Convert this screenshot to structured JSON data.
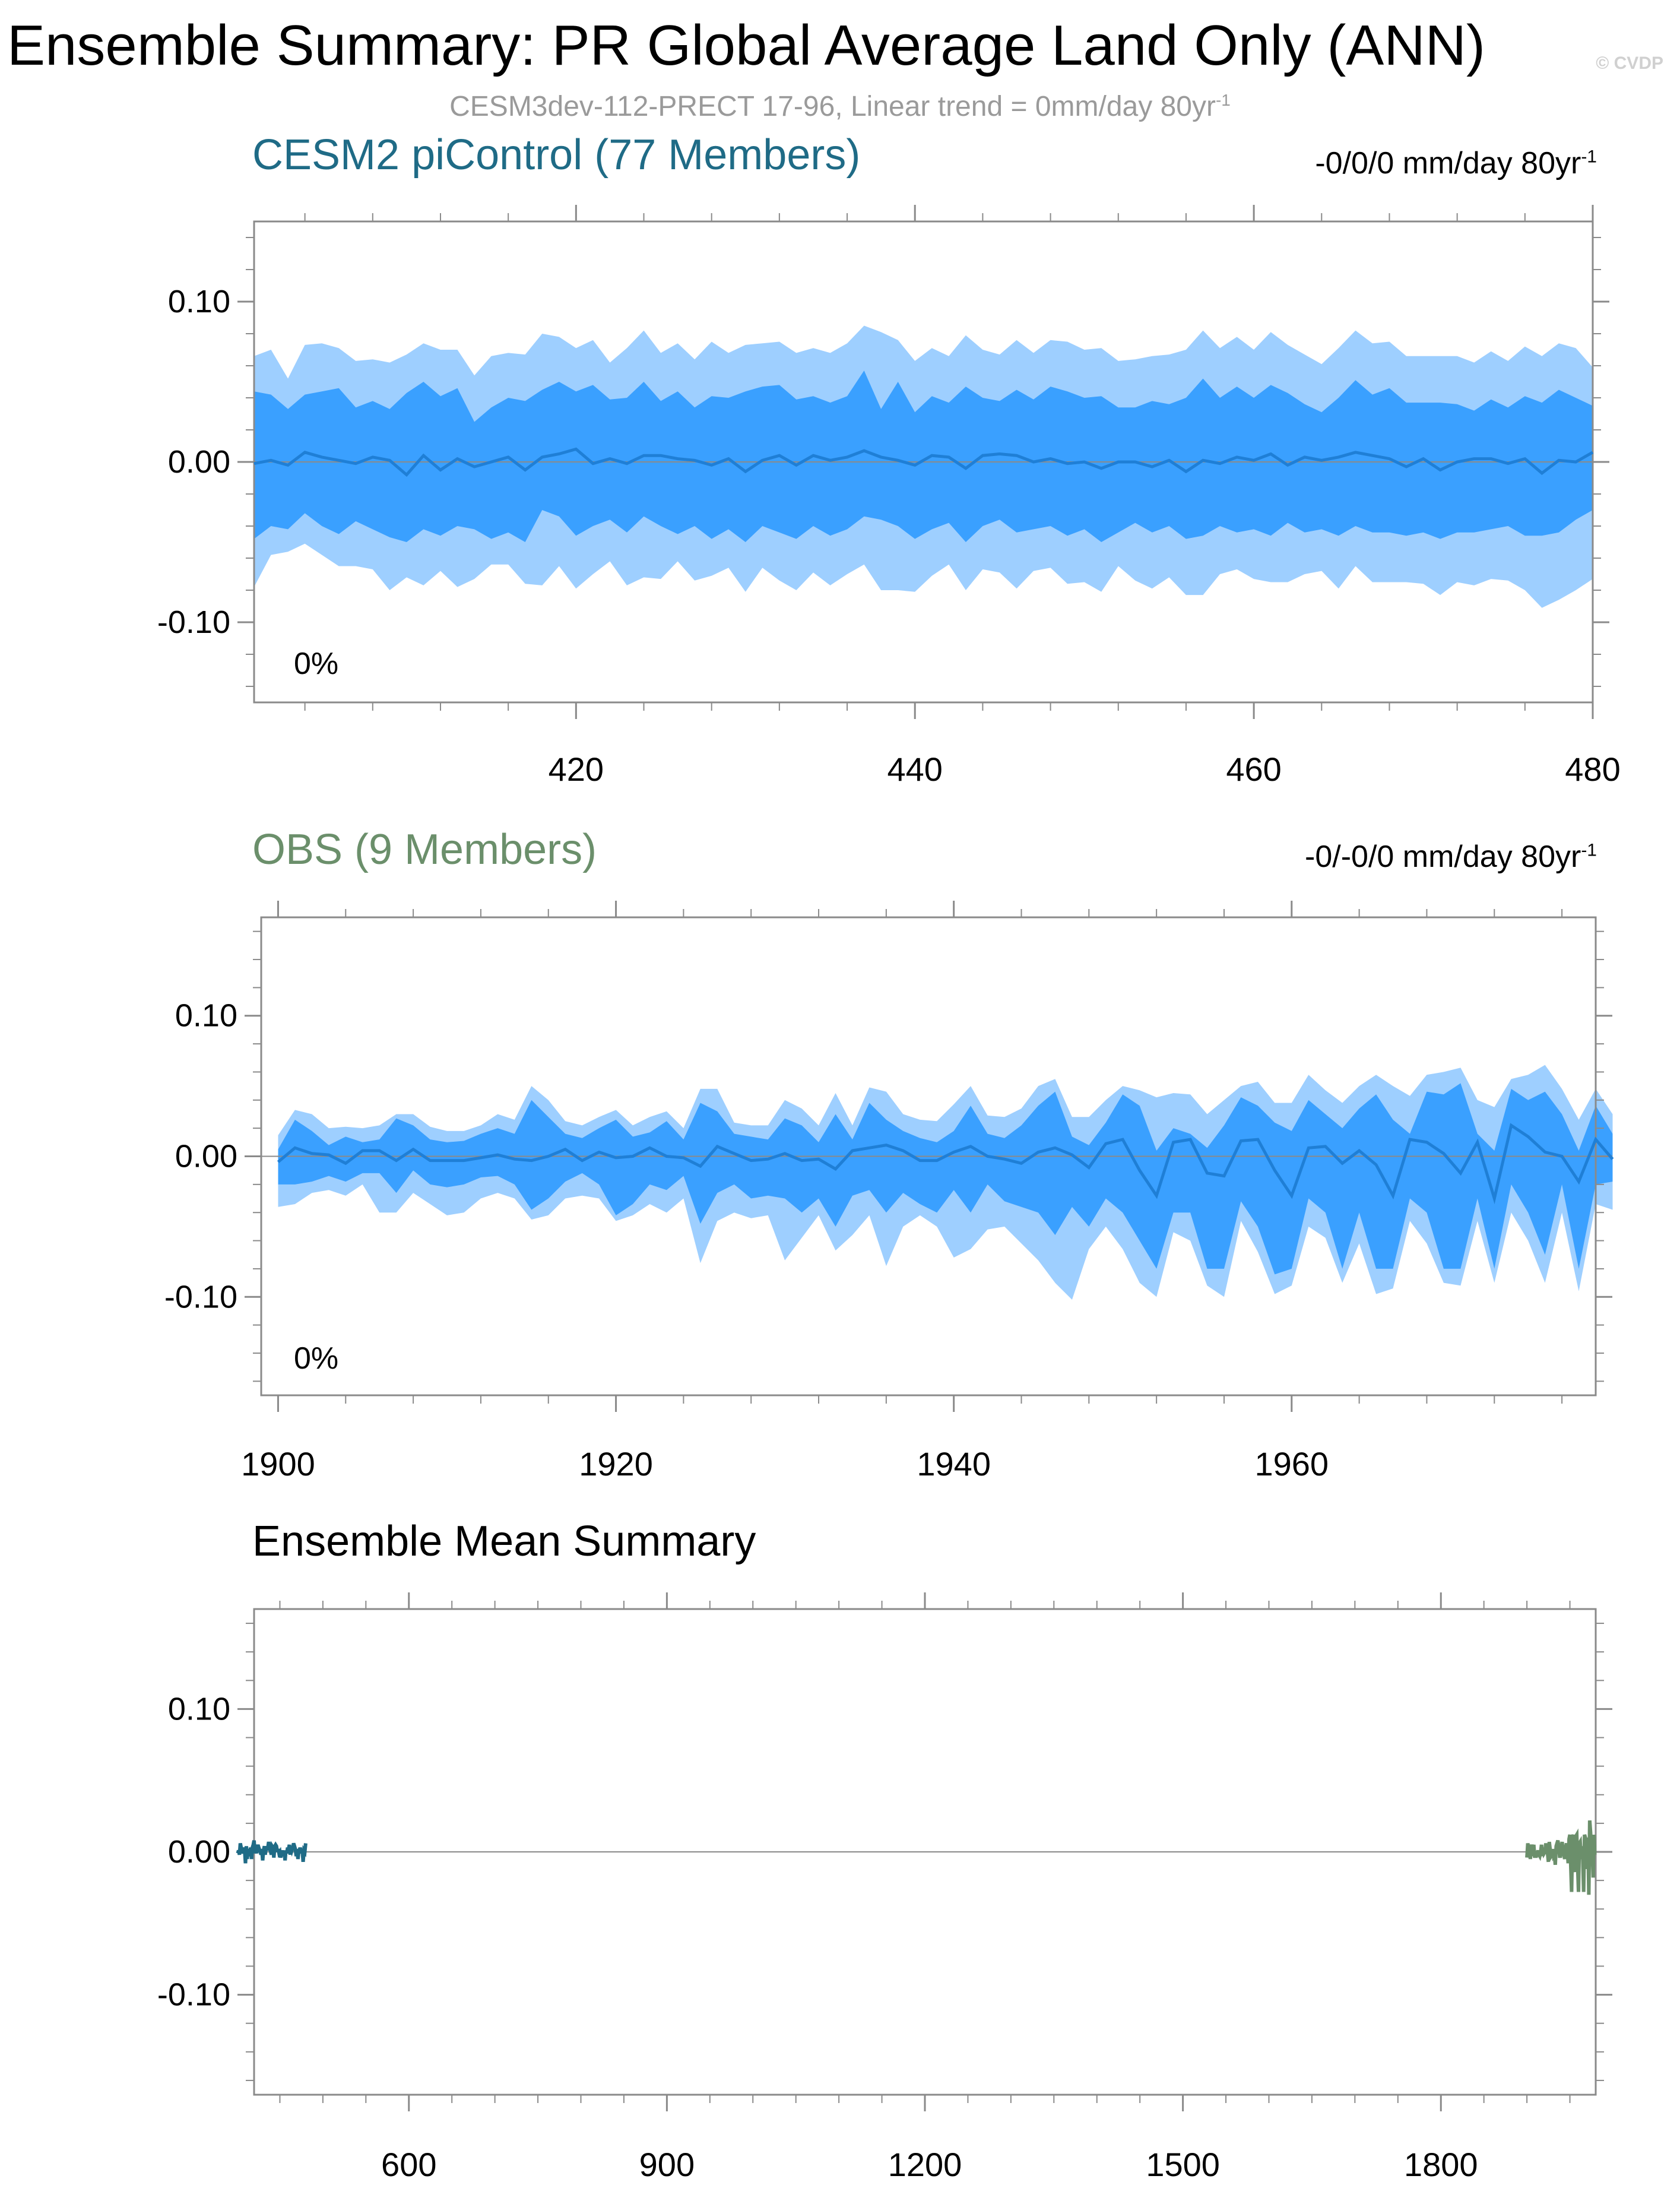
{
  "header": {
    "title": "Ensemble Summary: PR Global Average Land Only (ANN)",
    "watermark": "© CVDP",
    "subtitle": "CESM3dev-112-PRECT 17-96, Linear trend = 0mm/day 80yr",
    "subtitle_sup": "-1"
  },
  "colors": {
    "band_outer": "#9ecfff",
    "band_inner": "#3aa0ff",
    "mean_line": "#1f7fd6",
    "cesm_title": "#1f6b86",
    "obs_title": "#6b8f6b",
    "cesm_line": "#1f6b86",
    "obs_line": "#6b8f6b",
    "axis": "#8a8a8a"
  },
  "chart_data": [
    {
      "type": "area",
      "title": "CESM2 piControl (77 Members)",
      "trend": "-0/0/0 mm/day 80yr",
      "trend_sup": "-1",
      "percent_label": "0%",
      "xlim": [
        401,
        480
      ],
      "ylim": [
        -0.15,
        0.15
      ],
      "xticks": [
        420,
        440,
        460,
        480
      ],
      "yticks": [
        0.1,
        0.0,
        -0.1
      ],
      "ytick_labels": [
        "0.10",
        "0.00",
        "-0.10"
      ],
      "x_start": 401,
      "outer_upper": [
        0.066,
        0.07,
        0.052,
        0.073,
        0.074,
        0.071,
        0.063,
        0.064,
        0.062,
        0.067,
        0.074,
        0.07,
        0.07,
        0.054,
        0.066,
        0.068,
        0.067,
        0.08,
        0.078,
        0.071,
        0.076,
        0.062,
        0.071,
        0.082,
        0.068,
        0.074,
        0.064,
        0.075,
        0.068,
        0.073,
        0.074,
        0.075,
        0.068,
        0.071,
        0.068,
        0.074,
        0.085,
        0.081,
        0.076,
        0.063,
        0.071,
        0.066,
        0.079,
        0.07,
        0.067,
        0.076,
        0.068,
        0.076,
        0.075,
        0.07,
        0.071,
        0.063,
        0.064,
        0.066,
        0.067,
        0.07,
        0.082,
        0.071,
        0.078,
        0.07,
        0.081,
        0.073,
        0.067,
        0.061,
        0.071,
        0.082,
        0.074,
        0.075,
        0.066,
        0.066,
        0.066,
        0.066,
        0.062,
        0.069,
        0.063,
        0.072,
        0.066,
        0.074,
        0.071,
        0.059
      ],
      "inner_upper": [
        0.044,
        0.042,
        0.033,
        0.042,
        0.044,
        0.046,
        0.034,
        0.038,
        0.033,
        0.043,
        0.05,
        0.041,
        0.046,
        0.025,
        0.034,
        0.04,
        0.038,
        0.045,
        0.05,
        0.044,
        0.048,
        0.039,
        0.04,
        0.05,
        0.038,
        0.044,
        0.034,
        0.041,
        0.04,
        0.044,
        0.047,
        0.048,
        0.039,
        0.041,
        0.037,
        0.041,
        0.057,
        0.033,
        0.05,
        0.031,
        0.041,
        0.037,
        0.047,
        0.04,
        0.038,
        0.045,
        0.039,
        0.047,
        0.044,
        0.04,
        0.041,
        0.034,
        0.034,
        0.038,
        0.036,
        0.04,
        0.052,
        0.04,
        0.047,
        0.04,
        0.048,
        0.043,
        0.036,
        0.031,
        0.04,
        0.051,
        0.042,
        0.046,
        0.037,
        0.037,
        0.037,
        0.036,
        0.032,
        0.039,
        0.034,
        0.041,
        0.037,
        0.045,
        0.04,
        0.035
      ],
      "mean": [
        -0.001,
        0.001,
        -0.002,
        0.006,
        0.003,
        0.001,
        -0.001,
        0.003,
        0.001,
        -0.008,
        0.004,
        -0.005,
        0.002,
        -0.003,
        0.0,
        0.003,
        -0.005,
        0.003,
        0.005,
        0.008,
        -0.001,
        0.002,
        -0.001,
        0.004,
        0.004,
        0.002,
        0.001,
        -0.002,
        0.002,
        -0.006,
        0.001,
        0.004,
        -0.002,
        0.004,
        0.001,
        0.003,
        0.007,
        0.003,
        0.001,
        -0.002,
        0.004,
        0.003,
        -0.004,
        0.004,
        0.005,
        0.004,
        0.0,
        0.002,
        -0.001,
        0.0,
        -0.004,
        0.0,
        0.0,
        -0.003,
        0.001,
        -0.006,
        0.001,
        -0.001,
        0.003,
        0.001,
        0.005,
        -0.002,
        0.003,
        0.001,
        0.003,
        0.006,
        0.004,
        0.002,
        -0.003,
        0.002,
        -0.005,
        0.0,
        0.002,
        0.002,
        -0.001,
        0.002,
        -0.007,
        0.001,
        0.0,
        0.006
      ],
      "inner_lower": [
        -0.048,
        -0.04,
        -0.042,
        -0.032,
        -0.04,
        -0.045,
        -0.037,
        -0.042,
        -0.047,
        -0.05,
        -0.042,
        -0.046,
        -0.04,
        -0.042,
        -0.048,
        -0.044,
        -0.05,
        -0.03,
        -0.034,
        -0.046,
        -0.04,
        -0.036,
        -0.044,
        -0.034,
        -0.04,
        -0.045,
        -0.04,
        -0.048,
        -0.042,
        -0.05,
        -0.04,
        -0.044,
        -0.048,
        -0.04,
        -0.046,
        -0.042,
        -0.034,
        -0.036,
        -0.04,
        -0.048,
        -0.042,
        -0.038,
        -0.05,
        -0.04,
        -0.036,
        -0.044,
        -0.042,
        -0.04,
        -0.046,
        -0.042,
        -0.05,
        -0.044,
        -0.038,
        -0.044,
        -0.04,
        -0.048,
        -0.046,
        -0.04,
        -0.044,
        -0.042,
        -0.046,
        -0.038,
        -0.044,
        -0.042,
        -0.046,
        -0.04,
        -0.044,
        -0.044,
        -0.046,
        -0.044,
        -0.048,
        -0.044,
        -0.044,
        -0.042,
        -0.04,
        -0.046,
        -0.046,
        -0.044,
        -0.036,
        -0.03
      ],
      "outer_lower": [
        -0.078,
        -0.058,
        -0.056,
        -0.051,
        -0.058,
        -0.065,
        -0.065,
        -0.067,
        -0.08,
        -0.072,
        -0.077,
        -0.068,
        -0.078,
        -0.073,
        -0.064,
        -0.064,
        -0.076,
        -0.077,
        -0.065,
        -0.079,
        -0.07,
        -0.062,
        -0.077,
        -0.072,
        -0.073,
        -0.062,
        -0.074,
        -0.071,
        -0.066,
        -0.081,
        -0.066,
        -0.074,
        -0.08,
        -0.069,
        -0.077,
        -0.07,
        -0.064,
        -0.08,
        -0.08,
        -0.081,
        -0.071,
        -0.064,
        -0.08,
        -0.067,
        -0.069,
        -0.079,
        -0.068,
        -0.066,
        -0.076,
        -0.075,
        -0.081,
        -0.065,
        -0.074,
        -0.079,
        -0.072,
        -0.083,
        -0.083,
        -0.07,
        -0.067,
        -0.073,
        -0.075,
        -0.075,
        -0.07,
        -0.068,
        -0.079,
        -0.065,
        -0.075,
        -0.075,
        -0.075,
        -0.076,
        -0.083,
        -0.075,
        -0.077,
        -0.073,
        -0.074,
        -0.08,
        -0.091,
        -0.086,
        -0.08,
        -0.073
      ]
    },
    {
      "type": "area",
      "title": "OBS (9 Members)",
      "trend": "-0/-0/0 mm/day 80yr",
      "trend_sup": "-1",
      "percent_label": "0%",
      "xlim": [
        1899,
        1978
      ],
      "ylim": [
        -0.17,
        0.17
      ],
      "xticks": [
        1900,
        1920,
        1940,
        1960
      ],
      "yticks": [
        0.1,
        0.0,
        -0.1
      ],
      "ytick_labels": [
        "0.10",
        "0.00",
        "-0.10"
      ],
      "x_start": 1900,
      "outer_upper": [
        0.015,
        0.033,
        0.03,
        0.02,
        0.021,
        0.02,
        0.022,
        0.03,
        0.03,
        0.021,
        0.018,
        0.018,
        0.022,
        0.03,
        0.026,
        0.05,
        0.04,
        0.025,
        0.022,
        0.028,
        0.033,
        0.022,
        0.028,
        0.032,
        0.02,
        0.048,
        0.048,
        0.024,
        0.022,
        0.022,
        0.04,
        0.034,
        0.022,
        0.045,
        0.022,
        0.049,
        0.046,
        0.03,
        0.026,
        0.025,
        0.037,
        0.05,
        0.029,
        0.028,
        0.034,
        0.05,
        0.055,
        0.028,
        0.028,
        0.04,
        0.05,
        0.047,
        0.042,
        0.045,
        0.044,
        0.03,
        0.04,
        0.05,
        0.053,
        0.038,
        0.038,
        0.058,
        0.047,
        0.038,
        0.05,
        0.058,
        0.05,
        0.043,
        0.058,
        0.06,
        0.063,
        0.04,
        0.035,
        0.055,
        0.058,
        0.065,
        0.048,
        0.026,
        0.048,
        0.03
      ],
      "inner_upper": [
        0.005,
        0.026,
        0.018,
        0.008,
        0.014,
        0.01,
        0.012,
        0.027,
        0.022,
        0.012,
        0.01,
        0.011,
        0.016,
        0.02,
        0.016,
        0.04,
        0.028,
        0.016,
        0.013,
        0.02,
        0.026,
        0.014,
        0.017,
        0.025,
        0.012,
        0.038,
        0.032,
        0.016,
        0.014,
        0.012,
        0.027,
        0.022,
        0.01,
        0.03,
        0.012,
        0.038,
        0.026,
        0.018,
        0.013,
        0.01,
        0.018,
        0.036,
        0.016,
        0.013,
        0.022,
        0.036,
        0.046,
        0.014,
        0.008,
        0.024,
        0.044,
        0.036,
        0.004,
        0.02,
        0.016,
        0.006,
        0.022,
        0.042,
        0.036,
        0.024,
        0.018,
        0.04,
        0.03,
        0.02,
        0.034,
        0.044,
        0.026,
        0.016,
        0.046,
        0.044,
        0.052,
        0.016,
        0.004,
        0.048,
        0.04,
        0.046,
        0.03,
        0.004,
        0.036,
        0.016
      ],
      "mean": [
        -0.004,
        0.006,
        0.002,
        0.001,
        -0.005,
        0.004,
        0.004,
        -0.003,
        0.005,
        -0.003,
        -0.003,
        -0.003,
        -0.001,
        0.001,
        -0.002,
        -0.003,
        0.0,
        0.005,
        -0.003,
        0.003,
        -0.001,
        0.0,
        0.006,
        0.0,
        -0.001,
        -0.007,
        0.007,
        0.002,
        -0.003,
        -0.002,
        0.002,
        -0.003,
        -0.002,
        -0.009,
        0.004,
        0.006,
        0.008,
        0.004,
        -0.003,
        -0.003,
        0.003,
        0.007,
        0.0,
        -0.002,
        -0.005,
        0.003,
        0.006,
        0.001,
        -0.008,
        0.009,
        0.012,
        -0.01,
        -0.028,
        0.01,
        0.012,
        -0.012,
        -0.014,
        0.011,
        0.012,
        -0.01,
        -0.028,
        0.006,
        0.007,
        -0.005,
        0.004,
        -0.006,
        -0.028,
        0.012,
        0.01,
        0.002,
        -0.012,
        0.01,
        -0.03,
        0.022,
        0.014,
        0.003,
        0.0,
        -0.018,
        0.012,
        -0.002
      ],
      "inner_lower": [
        -0.02,
        -0.02,
        -0.018,
        -0.014,
        -0.018,
        -0.012,
        -0.012,
        -0.026,
        -0.01,
        -0.02,
        -0.022,
        -0.02,
        -0.015,
        -0.014,
        -0.02,
        -0.038,
        -0.03,
        -0.018,
        -0.012,
        -0.02,
        -0.042,
        -0.034,
        -0.02,
        -0.024,
        -0.014,
        -0.048,
        -0.026,
        -0.02,
        -0.03,
        -0.028,
        -0.03,
        -0.04,
        -0.03,
        -0.05,
        -0.028,
        -0.024,
        -0.04,
        -0.026,
        -0.034,
        -0.04,
        -0.024,
        -0.04,
        -0.02,
        -0.032,
        -0.036,
        -0.04,
        -0.056,
        -0.036,
        -0.05,
        -0.03,
        -0.04,
        -0.06,
        -0.08,
        -0.04,
        -0.04,
        -0.08,
        -0.08,
        -0.032,
        -0.05,
        -0.084,
        -0.08,
        -0.03,
        -0.04,
        -0.08,
        -0.04,
        -0.08,
        -0.08,
        -0.03,
        -0.04,
        -0.08,
        -0.08,
        -0.03,
        -0.08,
        -0.02,
        -0.04,
        -0.07,
        -0.02,
        -0.08,
        -0.02,
        -0.018
      ],
      "outer_lower": [
        -0.036,
        -0.034,
        -0.026,
        -0.024,
        -0.028,
        -0.02,
        -0.04,
        -0.04,
        -0.026,
        -0.034,
        -0.042,
        -0.04,
        -0.03,
        -0.026,
        -0.03,
        -0.045,
        -0.042,
        -0.03,
        -0.028,
        -0.03,
        -0.046,
        -0.042,
        -0.034,
        -0.04,
        -0.03,
        -0.076,
        -0.046,
        -0.04,
        -0.044,
        -0.042,
        -0.074,
        -0.058,
        -0.042,
        -0.067,
        -0.056,
        -0.042,
        -0.078,
        -0.05,
        -0.042,
        -0.05,
        -0.072,
        -0.066,
        -0.052,
        -0.05,
        -0.062,
        -0.074,
        -0.09,
        -0.102,
        -0.066,
        -0.05,
        -0.066,
        -0.09,
        -0.1,
        -0.054,
        -0.06,
        -0.092,
        -0.1,
        -0.046,
        -0.068,
        -0.098,
        -0.092,
        -0.05,
        -0.058,
        -0.09,
        -0.062,
        -0.098,
        -0.094,
        -0.046,
        -0.062,
        -0.09,
        -0.092,
        -0.046,
        -0.09,
        -0.04,
        -0.06,
        -0.09,
        -0.04,
        -0.096,
        -0.034,
        -0.038
      ]
    },
    {
      "type": "line",
      "title": "Ensemble Mean Summary",
      "xlim": [
        420,
        1980
      ],
      "ylim": [
        -0.17,
        0.17
      ],
      "xticks": [
        600,
        900,
        1200,
        1500,
        1800
      ],
      "yticks": [
        0.1,
        0.0,
        -0.1
      ],
      "ytick_labels": [
        "0.10",
        "0.00",
        "-0.10"
      ],
      "series": [
        {
          "x_start": 401,
          "values_ref": "cesm"
        },
        {
          "x_start": 1900,
          "values_ref": "obs"
        }
      ]
    }
  ]
}
